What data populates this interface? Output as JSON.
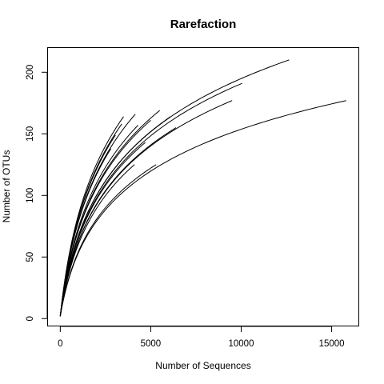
{
  "chart_data": {
    "type": "line",
    "title": "Rarefaction",
    "xlabel": "Number of Sequences",
    "ylabel": "Number of OTUs",
    "xlim": [
      -700,
      16500
    ],
    "ylim": [
      -6,
      220
    ],
    "xticks": [
      0,
      5000,
      10000,
      15000
    ],
    "yticks": [
      0,
      50,
      100,
      150,
      200
    ],
    "xtick_labels": [
      "0",
      "5000",
      "10000",
      "15000"
    ],
    "ytick_labels": [
      "0",
      "50",
      "100",
      "150",
      "200"
    ],
    "grid": false,
    "legend": "none",
    "line_color": "#000000",
    "series": [
      {
        "values": [
          [
            0,
            2
          ],
          [
            12650,
            210
          ]
        ]
      },
      {
        "values": [
          [
            0,
            2
          ],
          [
            10050,
            191
          ]
        ]
      },
      {
        "values": [
          [
            0,
            2
          ],
          [
            9500,
            177
          ]
        ]
      },
      {
        "values": [
          [
            0,
            2
          ],
          [
            15800,
            177
          ]
        ]
      },
      {
        "values": [
          [
            0,
            2
          ],
          [
            5500,
            169
          ]
        ]
      },
      {
        "values": [
          [
            0,
            2
          ],
          [
            4150,
            166
          ]
        ]
      },
      {
        "values": [
          [
            0,
            2
          ],
          [
            6100,
            164
          ]
        ]
      },
      {
        "values": [
          [
            0,
            2
          ],
          [
            3500,
            164
          ]
        ]
      },
      {
        "values": [
          [
            0,
            2
          ],
          [
            5000,
            161
          ]
        ]
      },
      {
        "values": [
          [
            0,
            2
          ],
          [
            3400,
            158
          ]
        ]
      },
      {
        "values": [
          [
            0,
            2
          ],
          [
            4300,
            157
          ]
        ]
      },
      {
        "values": [
          [
            0,
            2
          ],
          [
            6400,
            155
          ]
        ]
      },
      {
        "values": [
          [
            0,
            2
          ],
          [
            3050,
            149
          ]
        ]
      },
      {
        "values": [
          [
            0,
            2
          ],
          [
            4700,
            143
          ]
        ]
      },
      {
        "values": [
          [
            0,
            2
          ],
          [
            2800,
            138
          ]
        ]
      },
      {
        "values": [
          [
            0,
            2
          ],
          [
            4100,
            125
          ]
        ]
      },
      {
        "values": [
          [
            0,
            2
          ],
          [
            5300,
            125
          ]
        ]
      }
    ]
  }
}
